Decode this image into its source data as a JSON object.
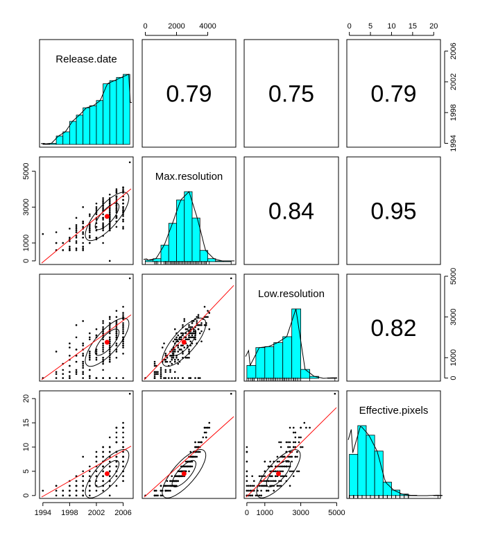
{
  "chart_data": {
    "type": "scatter-matrix",
    "variables": [
      "Release.date",
      "Max.resolution",
      "Low.resolution",
      "Effective.pixels"
    ],
    "correlations": [
      {
        "row": 0,
        "col": 1,
        "value": "0.79"
      },
      {
        "row": 0,
        "col": 2,
        "value": "0.75"
      },
      {
        "row": 0,
        "col": 3,
        "value": "0.79"
      },
      {
        "row": 1,
        "col": 2,
        "value": "0.84"
      },
      {
        "row": 1,
        "col": 3,
        "value": "0.95"
      },
      {
        "row": 2,
        "col": 3,
        "value": "0.82"
      }
    ],
    "axes": {
      "release_date": {
        "range": [
          1993.5,
          2007.5
        ],
        "ticks": [
          1994,
          1998,
          2002,
          2006
        ]
      },
      "max_resolution": {
        "range": [
          -200,
          5800
        ],
        "ticks": [
          0,
          1000,
          3000,
          5000
        ],
        "top_ticks": [
          0,
          2000,
          4000
        ]
      },
      "low_resolution": {
        "range": [
          -150,
          5100
        ],
        "ticks": [
          0,
          1000,
          3000,
          5000
        ]
      },
      "effective_pixels": {
        "range": [
          -0.6,
          21.6
        ],
        "ticks": [
          0,
          5,
          10,
          15,
          20
        ]
      }
    },
    "histograms": {
      "release_date": {
        "edges": [
          1994,
          1995,
          1996,
          1997,
          1998,
          1999,
          2000,
          2001,
          2002,
          2003,
          2004,
          2005,
          2006,
          2007
        ],
        "density": [
          0.005,
          0.01,
          0.08,
          0.12,
          0.22,
          0.28,
          0.35,
          0.37,
          0.42,
          0.58,
          0.61,
          0.64,
          0.67
        ]
      },
      "max_resolution": {
        "edges": [
          0,
          500,
          1000,
          1500,
          2000,
          2500,
          3000,
          3500,
          4000,
          4500,
          5000,
          5500
        ],
        "density": [
          0.02,
          0.04,
          0.22,
          0.51,
          0.82,
          0.93,
          0.58,
          0.15,
          0.04,
          0.01,
          0.01
        ]
      },
      "low_resolution": {
        "edges": [
          0,
          500,
          1000,
          1500,
          2000,
          2500,
          3000,
          3500,
          4000,
          4500,
          5000
        ],
        "density": [
          0.13,
          0.31,
          0.32,
          0.36,
          0.42,
          0.7,
          0.09,
          0.02,
          0.0,
          0.005
        ]
      },
      "effective_pixels": {
        "edges": [
          0,
          2,
          4,
          6,
          8,
          10,
          12,
          14,
          16,
          18,
          20,
          22
        ],
        "density": [
          0.52,
          0.88,
          0.76,
          0.56,
          0.17,
          0.07,
          0.02,
          0.005,
          0.0,
          0.0,
          0.005
        ]
      }
    },
    "means": {
      "release_date": 2003.6,
      "max_resolution": 2480,
      "low_resolution": 1760,
      "effective_pixels": 4.5
    }
  }
}
